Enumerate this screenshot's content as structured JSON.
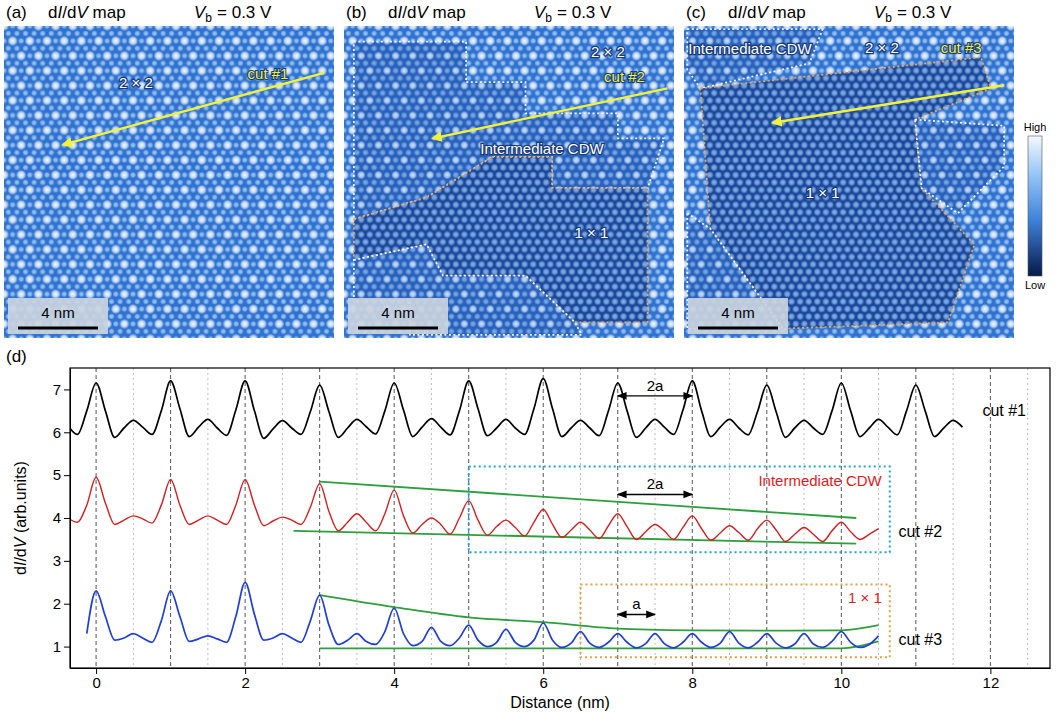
{
  "images": [
    {
      "letter": "(a)",
      "title": "dI/dV map",
      "bias": {
        "symbol": "V",
        "subscript": "b",
        "text": "= 0.3 V"
      },
      "regions": [
        "2 × 2"
      ],
      "cut": "cut #1",
      "scale_bar": "4 nm"
    },
    {
      "letter": "(b)",
      "title": "dI/dV map",
      "bias": {
        "symbol": "V",
        "subscript": "b",
        "text": "= 0.3 V"
      },
      "regions": [
        "2 × 2",
        "Intermediate CDW",
        "1 × 1"
      ],
      "cut": "cut #2",
      "scale_bar": "4 nm"
    },
    {
      "letter": "(c)",
      "title": "dI/dV map",
      "bias": {
        "symbol": "V",
        "subscript": "b",
        "text": "= 0.3 V"
      },
      "regions": [
        "Intermediate CDW",
        "2 × 2",
        "1 × 1"
      ],
      "cut": "cut #3",
      "scale_bar": "4 nm"
    }
  ],
  "colorbar": {
    "labels": [
      "High",
      "Low"
    ]
  },
  "chart_data": {
    "type": "line",
    "letter": "(d)",
    "xlabel": "Distance (nm)",
    "ylabel": "dI/dV (arb.units)",
    "xlim": [
      -0.35,
      12.8
    ],
    "ylim": [
      0.5,
      7.5
    ],
    "xticks": [
      0,
      2,
      4,
      6,
      8,
      10,
      12
    ],
    "yticks": [
      1,
      2,
      3,
      4,
      5,
      6,
      7
    ],
    "grid": true,
    "x": [
      -0.375,
      -0.25,
      -0.125,
      0,
      0.125,
      0.25,
      0.375,
      0.5,
      0.625,
      0.75,
      0.875,
      1,
      1.125,
      1.25,
      1.375,
      1.5,
      1.625,
      1.75,
      1.875,
      2,
      2.125,
      2.25,
      2.375,
      2.5,
      2.625,
      2.75,
      2.875,
      3,
      3.125,
      3.25,
      3.375,
      3.5,
      3.625,
      3.75,
      3.875,
      4,
      4.125,
      4.25,
      4.375,
      4.5,
      4.625,
      4.75,
      4.875,
      5,
      5.125,
      5.25,
      5.375,
      5.5,
      5.625,
      5.75,
      5.875,
      6,
      6.125,
      6.25,
      6.375,
      6.5,
      6.625,
      6.75,
      6.875,
      7,
      7.125,
      7.25,
      7.375,
      7.5,
      7.625,
      7.75,
      7.875,
      8,
      8.125,
      8.25,
      8.375,
      8.5,
      8.625,
      8.75,
      8.875,
      9,
      9.125,
      9.25,
      9.375,
      9.5,
      9.625,
      9.75,
      9.875,
      10,
      10.125,
      10.25,
      10.375,
      10.5,
      10.625,
      10.75,
      10.875,
      11,
      11.125,
      11.25,
      11.375,
      11.5,
      11.625
    ],
    "series": [
      {
        "name": "cut #1",
        "color": "#000000",
        "values": [
          6.15,
          5.95,
          6.5,
          7.15,
          6.5,
          5.88,
          6.1,
          6.28,
          6.12,
          5.95,
          6.5,
          7.2,
          6.55,
          5.9,
          6.12,
          6.3,
          6.1,
          5.93,
          6.52,
          7.2,
          6.5,
          5.86,
          6.08,
          6.27,
          6.1,
          5.95,
          6.48,
          7.1,
          6.48,
          5.88,
          6.1,
          6.3,
          6.13,
          5.96,
          6.5,
          7.15,
          6.52,
          5.9,
          6.12,
          6.32,
          6.12,
          5.94,
          6.5,
          7.2,
          6.55,
          5.92,
          6.1,
          6.3,
          6.1,
          5.95,
          6.55,
          7.25,
          6.55,
          5.9,
          6.1,
          6.28,
          6.1,
          5.92,
          6.5,
          7.15,
          6.5,
          5.88,
          6.1,
          6.3,
          6.12,
          5.95,
          6.52,
          7.2,
          6.5,
          5.9,
          6.12,
          6.3,
          6.1,
          5.94,
          6.48,
          7.1,
          6.48,
          5.88,
          6.1,
          6.28,
          6.1,
          5.95,
          6.5,
          7.15,
          6.5,
          5.9,
          6.1,
          6.3,
          6.12,
          5.94,
          6.5,
          7.1,
          6.5,
          5.9,
          6.1,
          6.28,
          6.12
        ]
      },
      {
        "name": "cut #2",
        "color": "#d41f1f",
        "values": [
          4.0,
          3.9,
          4.3,
          4.95,
          4.35,
          3.85,
          3.95,
          4.05,
          3.98,
          3.88,
          4.3,
          4.9,
          4.3,
          3.85,
          3.95,
          4.05,
          3.95,
          3.85,
          4.3,
          4.9,
          4.3,
          3.82,
          3.93,
          4.02,
          3.95,
          3.85,
          4.25,
          4.8,
          4.15,
          3.7,
          3.9,
          4.1,
          3.9,
          3.7,
          4.1,
          4.65,
          4.05,
          3.65,
          3.85,
          4.0,
          3.85,
          3.62,
          4.0,
          4.4,
          3.95,
          3.6,
          3.8,
          3.95,
          3.78,
          3.58,
          3.9,
          4.2,
          3.85,
          3.55,
          3.72,
          3.9,
          3.72,
          3.52,
          3.82,
          4.1,
          3.8,
          3.5,
          3.68,
          3.85,
          3.7,
          3.5,
          3.78,
          4.05,
          3.75,
          3.48,
          3.65,
          3.82,
          3.66,
          3.48,
          3.75,
          3.95,
          3.72,
          3.45,
          3.62,
          3.78,
          3.62,
          3.45,
          3.7,
          3.9,
          3.68,
          3.5,
          3.62,
          3.75,
          null,
          null,
          null,
          null,
          null,
          null,
          null,
          null,
          null
        ]
      },
      {
        "name": "cut #3",
        "color": "#1f3fd6",
        "values": [
          null,
          null,
          1.3,
          2.3,
          1.7,
          1.15,
          1.2,
          1.3,
          1.2,
          1.1,
          1.6,
          2.3,
          1.7,
          1.12,
          1.18,
          1.25,
          1.18,
          1.1,
          1.7,
          2.5,
          1.75,
          1.15,
          1.2,
          1.3,
          1.2,
          1.1,
          1.6,
          2.2,
          1.5,
          1.05,
          1.15,
          1.3,
          1.12,
          1.05,
          1.35,
          1.9,
          1.3,
          1.02,
          1.12,
          1.45,
          1.12,
          1.02,
          1.2,
          1.5,
          1.15,
          1.0,
          1.1,
          1.4,
          1.1,
          1.0,
          1.15,
          1.55,
          1.15,
          0.98,
          1.08,
          1.35,
          1.08,
          0.98,
          1.1,
          1.3,
          1.1,
          0.97,
          1.07,
          1.3,
          1.07,
          0.97,
          1.1,
          1.3,
          1.1,
          0.98,
          1.08,
          1.35,
          1.08,
          0.97,
          1.1,
          1.3,
          1.08,
          0.97,
          1.06,
          1.3,
          1.06,
          0.98,
          1.12,
          1.35,
          1.1,
          0.98,
          1.05,
          1.25,
          null,
          null,
          null,
          null,
          null,
          null,
          null,
          null,
          null
        ]
      }
    ],
    "envelopes": [
      {
        "color": "#2e9e3e",
        "x": [
          3,
          10.2
        ],
        "y": [
          4.85,
          4.0
        ]
      },
      {
        "color": "#2e9e3e",
        "x": [
          2.65,
          10.2
        ],
        "y": [
          3.7,
          3.4
        ]
      },
      {
        "color": "#2e9e3e",
        "x": [
          3,
          4,
          5,
          6,
          7,
          8,
          9,
          10,
          10.5
        ],
        "y": [
          2.2,
          1.92,
          1.68,
          1.57,
          1.42,
          1.38,
          1.37,
          1.38,
          1.5
        ]
      },
      {
        "color": "#2e9e3e",
        "x": [
          3,
          10,
          10.5
        ],
        "y": [
          0.96,
          0.96,
          1.12
        ]
      }
    ],
    "boxes": [
      {
        "label": "Intermediate CDW",
        "color": "#1ea4dc",
        "x": [
          5,
          10.65
        ],
        "y": [
          3.2,
          5.2
        ]
      },
      {
        "label": "1 × 1",
        "color": "#e8a040",
        "x": [
          6.5,
          10.65
        ],
        "y": [
          0.75,
          2.45
        ]
      }
    ],
    "spans": [
      {
        "label": "2a",
        "x": [
          7,
          8
        ],
        "y": 6.85
      },
      {
        "label": "2a",
        "x": [
          7,
          8
        ],
        "y": 4.55
      },
      {
        "label": "a",
        "x": [
          7,
          7.5
        ],
        "y": 1.75
      }
    ]
  }
}
